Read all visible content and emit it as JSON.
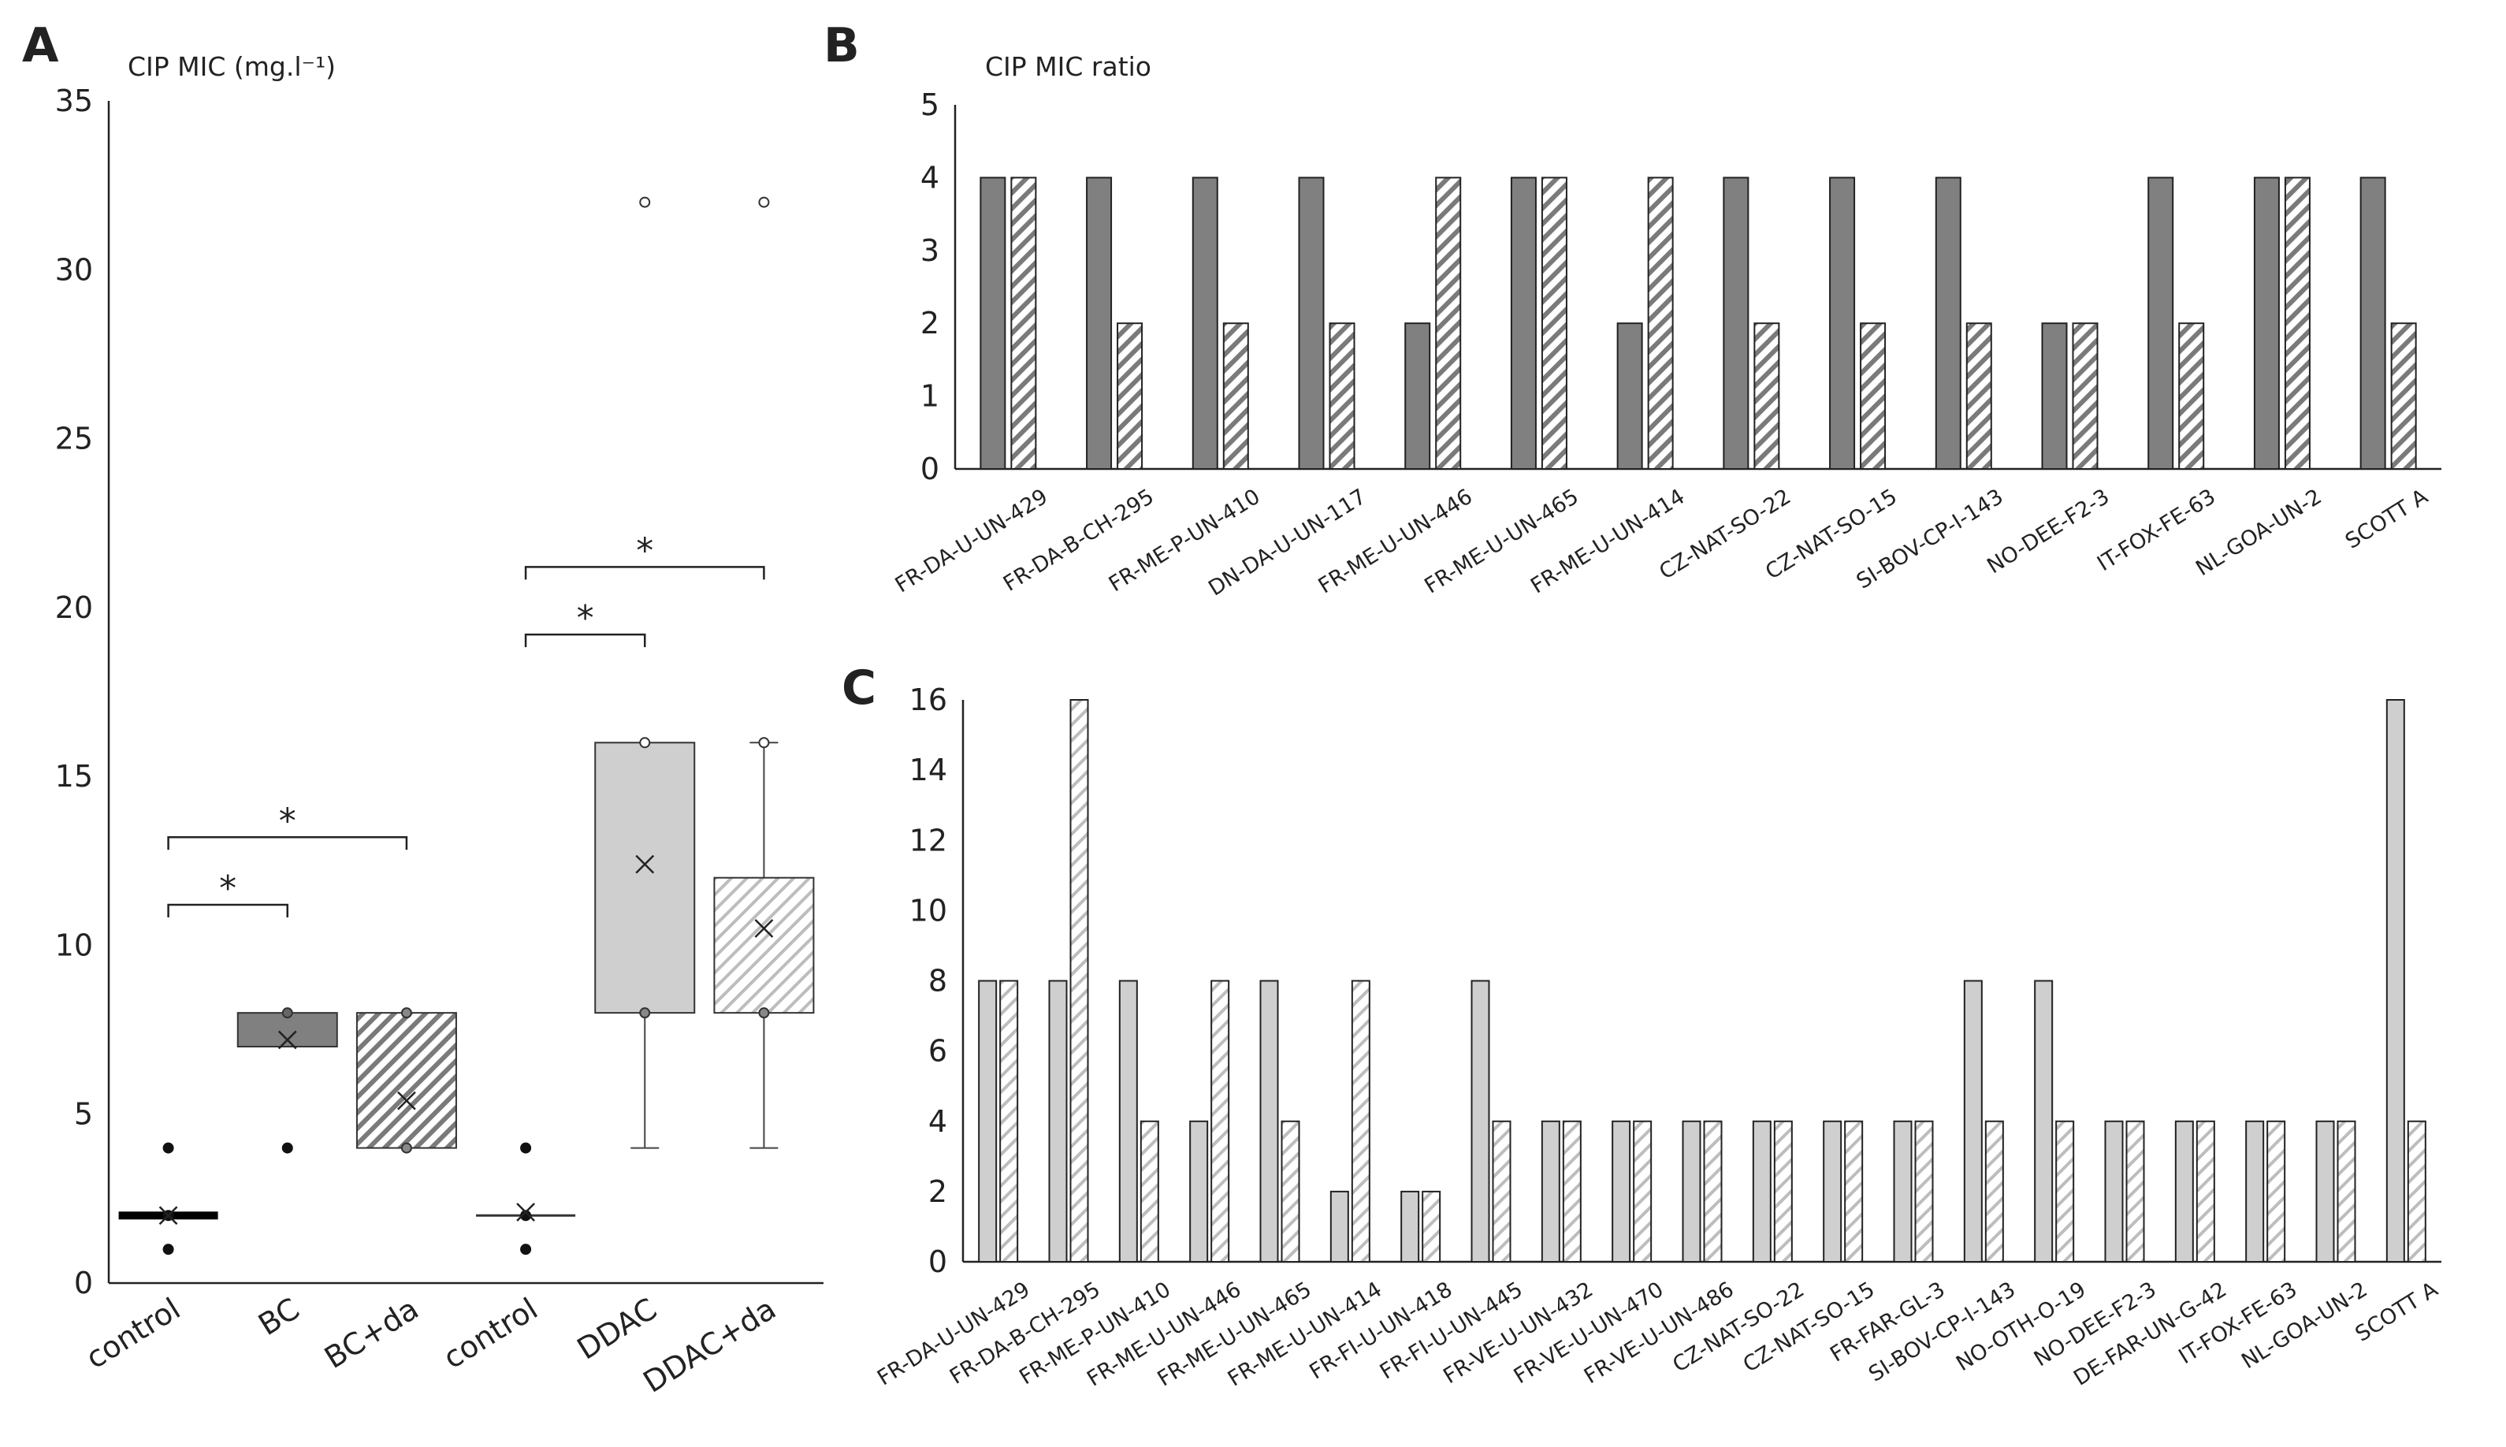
{
  "colors": {
    "dark": "#808080",
    "medium": "#cfcfcf",
    "hatch_dark": "#7a7a7a",
    "hatch_light": "#bdbdbd",
    "axis": "#222222"
  },
  "chart_data": [
    {
      "panel": "A",
      "type": "box",
      "ylabel": "CIP MIC (mg.l⁻¹)",
      "ylim": [
        0,
        35
      ],
      "yticks": [
        0,
        5,
        10,
        15,
        20,
        25,
        30,
        35
      ],
      "grid": false,
      "categories": [
        "control",
        "BC",
        "BC+da",
        "control",
        "DDAC",
        "DDAC+da"
      ],
      "boxes": [
        {
          "category": "control",
          "fill": "dark",
          "q1": 1.8,
          "median": 1.9,
          "q3": 2.0,
          "mean": 2.0,
          "whisker_low": null,
          "whisker_high": null,
          "points": [
            1,
            2,
            4
          ]
        },
        {
          "category": "BC",
          "fill": "dark",
          "q1": 7,
          "median": 7,
          "q3": 8,
          "mean": 7.2,
          "whisker_low": null,
          "whisker_high": null,
          "points": [
            4,
            8
          ]
        },
        {
          "category": "BC+da",
          "fill": "hatch_dark",
          "q1": 4,
          "median": 4,
          "q3": 8,
          "mean": 5.4,
          "whisker_low": null,
          "whisker_high": null,
          "points": [
            4,
            8
          ]
        },
        {
          "category": "control",
          "fill": "none",
          "q1": 2,
          "median": 2,
          "q3": 2,
          "mean": 2.1,
          "whisker_low": null,
          "whisker_high": null,
          "points": [
            1,
            2,
            4
          ]
        },
        {
          "category": "DDAC",
          "fill": "medium",
          "q1": 8,
          "median": 8,
          "q3": 16,
          "mean": 12.4,
          "whisker_low": 4,
          "whisker_high": 16,
          "points": [
            8,
            16,
            32
          ]
        },
        {
          "category": "DDAC+da",
          "fill": "hatch_light",
          "q1": 8,
          "median": 8,
          "q3": 12,
          "mean": 10.5,
          "whisker_low": 4,
          "whisker_high": 16,
          "points": [
            8,
            16,
            32
          ]
        }
      ],
      "significance": [
        {
          "from": 0,
          "to": 1,
          "y": 11.2,
          "label": "*"
        },
        {
          "from": 0,
          "to": 2,
          "y": 13.2,
          "label": "*"
        },
        {
          "from": 3,
          "to": 4,
          "y": 19.2,
          "label": "*"
        },
        {
          "from": 3,
          "to": 5,
          "y": 21.2,
          "label": "*"
        }
      ]
    },
    {
      "panel": "B",
      "type": "bar",
      "ylabel": "CIP MIC ratio",
      "ylim": [
        0,
        5
      ],
      "yticks": [
        0,
        1,
        2,
        3,
        4,
        5
      ],
      "grid": false,
      "categories": [
        "FR-DA-U-UN-429",
        "FR-DA-B-CH-295",
        "FR-ME-P-UN-410",
        "DN-DA-U-UN-117",
        "FR-ME-U-UN-446",
        "FR-ME-U-UN-465",
        "FR-ME-U-UN-414",
        "CZ-NAT-SO-22",
        "CZ-NAT-SO-15",
        "SI-BOV-CP-I-143",
        "NO-DEE-F2-3",
        "IT-FOX-FE-63",
        "NL-GOA-UN-2",
        "SCOTT A"
      ],
      "series": [
        {
          "fill": "dark",
          "values": [
            4,
            4,
            4,
            4,
            2,
            4,
            2,
            4,
            4,
            4,
            2,
            4,
            4,
            4
          ]
        },
        {
          "fill": "hatch_dark",
          "values": [
            4,
            2,
            2,
            2,
            4,
            4,
            4,
            2,
            2,
            2,
            2,
            2,
            4,
            2
          ]
        }
      ]
    },
    {
      "panel": "C",
      "type": "bar",
      "ylabel": "",
      "ylim": [
        0,
        16
      ],
      "yticks": [
        0,
        2,
        4,
        6,
        8,
        10,
        12,
        14,
        16
      ],
      "grid": false,
      "categories": [
        "FR-DA-U-UN-429",
        "FR-DA-B-CH-295",
        "FR-ME-P-UN-410",
        "FR-ME-U-UN-446",
        "FR-ME-U-UN-465",
        "FR-ME-U-UN-414",
        "FR-FI-U-UN-418",
        "FR-FI-U-UN-445",
        "FR-VE-U-UN-432",
        "FR-VE-U-UN-470",
        "FR-VE-U-UN-486",
        "CZ-NAT-SO-22",
        "CZ-NAT-SO-15",
        "FR-FAR-GL-3",
        "SI-BOV-CP-I-143",
        "NO-OTH-O-19",
        "NO-DEE-F2-3",
        "DE-FAR-UN-G-42",
        "IT-FOX-FE-63",
        "NL-GOA-UN-2",
        "SCOTT A"
      ],
      "series": [
        {
          "fill": "medium",
          "values": [
            8,
            8,
            8,
            4,
            8,
            2,
            2,
            8,
            4,
            4,
            4,
            4,
            4,
            4,
            8,
            8,
            4,
            4,
            4,
            4,
            16
          ]
        },
        {
          "fill": "hatch_light",
          "values": [
            8,
            16,
            4,
            8,
            4,
            8,
            2,
            4,
            4,
            4,
            4,
            4,
            4,
            4,
            4,
            4,
            4,
            4,
            4,
            4,
            4
          ]
        }
      ]
    }
  ]
}
